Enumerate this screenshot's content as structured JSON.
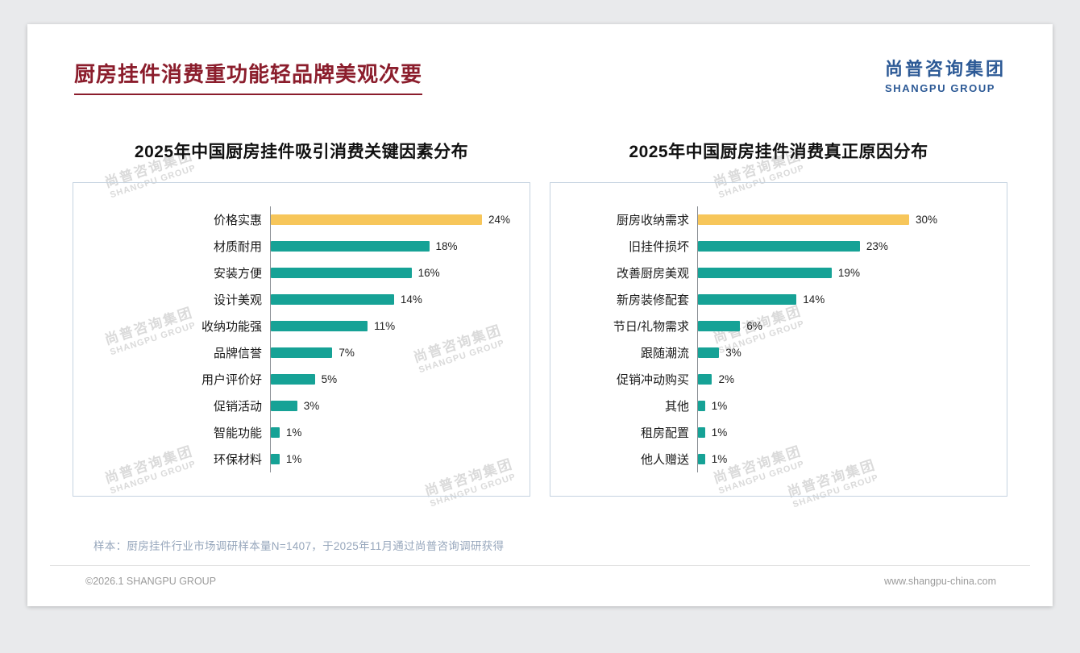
{
  "page": {
    "title": "厨房挂件消费重功能轻品牌美观次要",
    "logo": {
      "cn": "尚普咨询集团",
      "en": "SHANGPU GROUP"
    },
    "watermark": {
      "cn": "尚普咨询集团",
      "en": "SHANGPU GROUP"
    },
    "footnote": "样本：厨房挂件行业市场调研样本量N=1407，于2025年11月通过尚普咨询调研获得",
    "copyright": "©2026.1 SHANGPU GROUP",
    "website": "www.shangpu-china.com"
  },
  "colors": {
    "title_red": "#8B1D2C",
    "logo_blue": "#2D5A96",
    "bar_teal": "#16A296",
    "bar_highlight_yellow": "#F7C65A",
    "panel_border": "#c5d3e0"
  },
  "chart_data": [
    {
      "type": "bar",
      "orientation": "horizontal",
      "title": "2025年中国厨房挂件吸引消费关键因素分布",
      "categories": [
        "价格实惠",
        "材质耐用",
        "安装方便",
        "设计美观",
        "收纳功能强",
        "品牌信誉",
        "用户评价好",
        "促销活动",
        "智能功能",
        "环保材料"
      ],
      "values": [
        24,
        18,
        16,
        14,
        11,
        7,
        5,
        3,
        1,
        1
      ],
      "unit": "%",
      "value_labels": [
        "24%",
        "18%",
        "16%",
        "14%",
        "11%",
        "7%",
        "5%",
        "3%",
        "1%",
        "1%"
      ],
      "highlight_index": 0,
      "xlim": [
        0,
        26
      ],
      "grid": false,
      "legend": false
    },
    {
      "type": "bar",
      "orientation": "horizontal",
      "title": "2025年中国厨房挂件消费真正原因分布",
      "categories": [
        "厨房收纳需求",
        "旧挂件损坏",
        "改善厨房美观",
        "新房装修配套",
        "节日/礼物需求",
        "跟随潮流",
        "促销冲动购买",
        "其他",
        "租房配置",
        "他人赠送"
      ],
      "values": [
        30,
        23,
        19,
        14,
        6,
        3,
        2,
        1,
        1,
        1
      ],
      "unit": "%",
      "value_labels": [
        "30%",
        "23%",
        "19%",
        "14%",
        "6%",
        "3%",
        "2%",
        "1%",
        "1%",
        "1%"
      ],
      "highlight_index": 0,
      "xlim": [
        0,
        32
      ],
      "grid": false,
      "legend": false
    }
  ]
}
